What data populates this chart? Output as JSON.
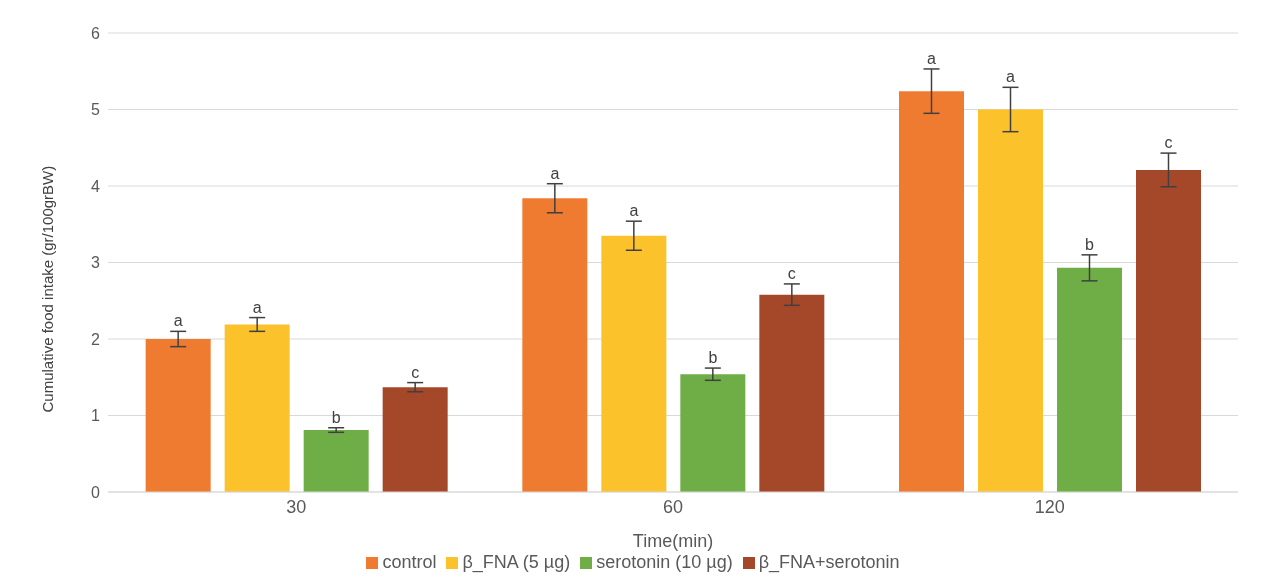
{
  "chart_data": {
    "type": "bar",
    "xlabel": "Time(min)",
    "ylabel": "Cumulative food intake (gr/100grBW)",
    "categories": [
      "30",
      "60",
      "120"
    ],
    "series": [
      {
        "name": "control",
        "color": "#ef7b30",
        "values": [
          2.0,
          3.84,
          5.24
        ],
        "errors": [
          0.1,
          0.19,
          0.29
        ],
        "value_labels": [
          "a",
          "a",
          "a"
        ]
      },
      {
        "name": "β_FNA (5 µg)",
        "color": "#fcc22c",
        "values": [
          2.19,
          3.35,
          5.0
        ],
        "errors": [
          0.09,
          0.19,
          0.29
        ],
        "value_labels": [
          "a",
          "a",
          "a"
        ]
      },
      {
        "name": "serotonin (10 µg)",
        "color": "#6fae46",
        "values": [
          0.81,
          1.54,
          2.93
        ],
        "errors": [
          0.03,
          0.08,
          0.17
        ],
        "value_labels": [
          "b",
          "b",
          "b"
        ]
      },
      {
        "name": "β_FNA+serotonin",
        "color": "#a5482a",
        "values": [
          1.37,
          2.58,
          4.21
        ],
        "errors": [
          0.06,
          0.14,
          0.22
        ],
        "value_labels": [
          "c",
          "c",
          "c"
        ]
      }
    ],
    "ylim": [
      0,
      6
    ],
    "yticks": [
      0,
      1,
      2,
      3,
      4,
      5,
      6
    ],
    "grid": "y",
    "legend": "bottom"
  }
}
